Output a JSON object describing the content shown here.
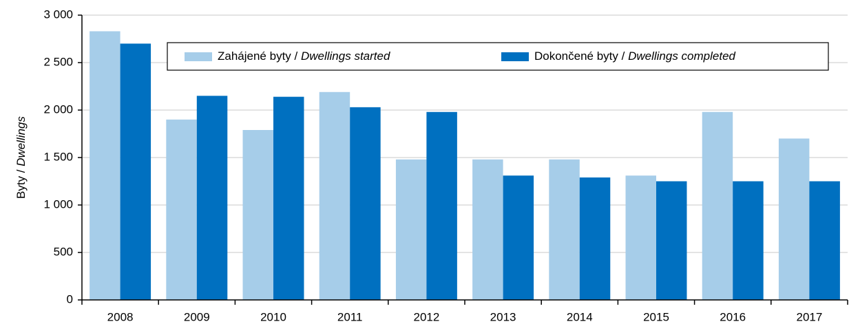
{
  "chart_data": {
    "type": "bar",
    "y_label": "Byty / Dwellings",
    "categories": [
      "2008",
      "2009",
      "2010",
      "2011",
      "2012",
      "2013",
      "2014",
      "2015",
      "2016",
      "2017"
    ],
    "series": [
      {
        "name": "Zahájené byty / Dwellings started",
        "color": "#a6cde9",
        "values": [
          2830,
          1900,
          1790,
          2190,
          1480,
          1480,
          1480,
          1310,
          1980,
          1700
        ]
      },
      {
        "name": "Dokončené byty / Dwellings completed",
        "color": "#0070c0",
        "values": [
          2700,
          2150,
          2140,
          2030,
          1980,
          1310,
          1290,
          1250,
          1250,
          1250
        ]
      }
    ],
    "ylim": [
      0,
      3000
    ],
    "yticks": [
      0,
      500,
      {
        "value": 1000,
        "label": "1 000"
      },
      {
        "value": 1500,
        "label": "1 500"
      },
      {
        "value": 2000,
        "label": "2 000"
      },
      {
        "value": 2500,
        "label": "2 500"
      },
      {
        "value": 3000,
        "label": "3 000"
      }
    ],
    "grid": true,
    "legend": "top"
  }
}
